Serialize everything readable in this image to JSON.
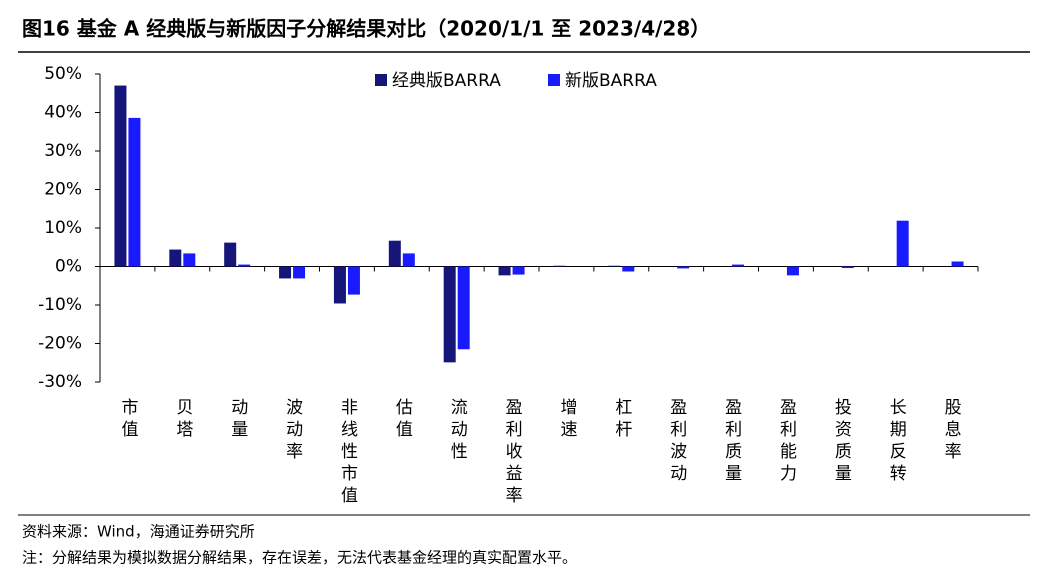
{
  "title": "图16 基金 A 经典版与新版因子分解结果对比（2020/1/1 至 2023/4/28）",
  "chart_data": {
    "type": "bar",
    "categories": [
      "市值",
      "贝塔",
      "动量",
      "波动率",
      "非线性市值",
      "估值",
      "流动性",
      "盈利收益率",
      "增速",
      "杠杆",
      "盈利波动",
      "盈利质量",
      "盈利能力",
      "投资质量",
      "长期反转",
      "股息率"
    ],
    "series": [
      {
        "name": "经典版BARRA",
        "color": "#15157a",
        "values": [
          47,
          4.4,
          6.2,
          -3.1,
          -9.6,
          6.7,
          -24.9,
          -2.3,
          0.2,
          0.2,
          0,
          0,
          0,
          0,
          0,
          0
        ]
      },
      {
        "name": "新版BARRA",
        "color": "#1a1aff",
        "values": [
          38.6,
          3.4,
          0.5,
          -3.1,
          -7.3,
          3.4,
          -21.5,
          -2.1,
          0,
          -1.3,
          -0.5,
          0.5,
          -2.3,
          -0.4,
          11.9,
          1.3
        ]
      }
    ],
    "ylim": [
      -30,
      50
    ],
    "yticks": [
      {
        "value": -30,
        "label": "-30%"
      },
      {
        "value": -20,
        "label": "-20%"
      },
      {
        "value": -10,
        "label": "-10%"
      },
      {
        "value": 0,
        "label": "0%"
      },
      {
        "value": 10,
        "label": "10%"
      },
      {
        "value": 20,
        "label": "20%"
      },
      {
        "value": 30,
        "label": "30%"
      },
      {
        "value": 40,
        "label": "40%"
      },
      {
        "value": 50,
        "label": "50%"
      }
    ],
    "legend": "upper center"
  },
  "footnotes": [
    "资料来源：Wind，海通证券研究所",
    "注：分解结果为模拟数据分解结果，存在误差，无法代表基金经理的真实配置水平。"
  ]
}
